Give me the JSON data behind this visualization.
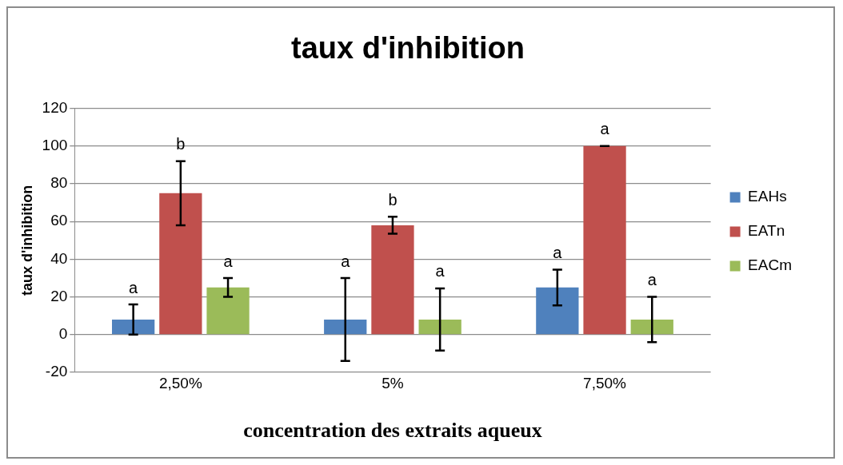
{
  "chart_data": {
    "type": "bar",
    "title": "taux d'inhibition",
    "xlabel": "concentration des extraits aqueux",
    "ylabel": "taux d'inhibition",
    "categories": [
      "2,50%",
      "5%",
      "7,50%"
    ],
    "series": [
      {
        "name": "EAHs",
        "color": "#4f81bd",
        "values": [
          8,
          8,
          25
        ],
        "errors": [
          8,
          22,
          9.5
        ],
        "value_labels": [
          "a",
          "a",
          "a"
        ]
      },
      {
        "name": "EATn",
        "color": "#c0504d",
        "values": [
          75,
          58,
          100
        ],
        "errors": [
          17,
          4.5,
          0
        ],
        "value_labels": [
          "b",
          "b",
          "a"
        ]
      },
      {
        "name": "EACm",
        "color": "#9bbb59",
        "values": [
          25,
          8,
          8
        ],
        "errors": [
          5,
          16.5,
          12
        ],
        "value_labels": [
          "a",
          "a",
          "a"
        ]
      }
    ],
    "ylim": [
      -20,
      120
    ],
    "yticks": [
      -20,
      0,
      20,
      40,
      60,
      80,
      100,
      120
    ],
    "grid": "y",
    "legend": "right"
  }
}
